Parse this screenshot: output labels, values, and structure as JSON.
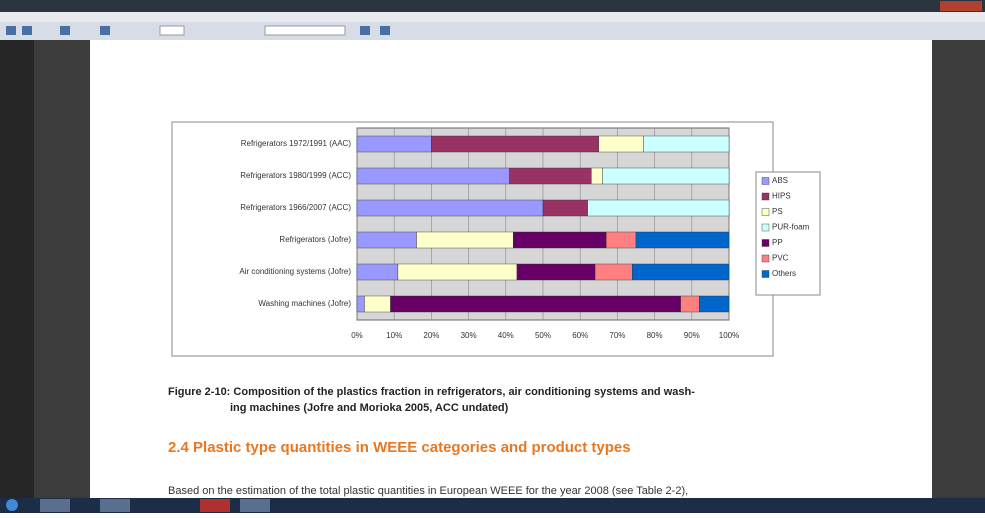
{
  "chart_data": {
    "type": "stacked-bar-horizontal",
    "categories": [
      "Refrigerators 1972/1991 (AAC)",
      "Refrigerators 1980/1999 (ACC)",
      "Refrigerators 1966/2007 (ACC)",
      "Refrigerators (Jofre)",
      "Air conditioning systems (Jofre)",
      "Washing machines (Jofre)"
    ],
    "series": [
      {
        "name": "ABS",
        "color": "#9999ff",
        "values": [
          20,
          41,
          50,
          16,
          11,
          2
        ]
      },
      {
        "name": "HIPS",
        "color": "#993366",
        "values": [
          45,
          22,
          12,
          0,
          0,
          0
        ]
      },
      {
        "name": "PS",
        "color": "#ffffcc",
        "values": [
          12,
          3,
          0,
          26,
          32,
          7
        ]
      },
      {
        "name": "PUR-foam",
        "color": "#ccffff",
        "values": [
          23,
          34,
          38,
          0,
          0,
          0
        ]
      },
      {
        "name": "PP",
        "color": "#660066",
        "values": [
          0,
          0,
          0,
          25,
          21,
          78
        ]
      },
      {
        "name": "PVC",
        "color": "#ff8080",
        "values": [
          0,
          0,
          0,
          8,
          10,
          5
        ]
      },
      {
        "name": "Others",
        "color": "#0066cc",
        "values": [
          0,
          0,
          0,
          25,
          26,
          8
        ]
      }
    ],
    "xlim": [
      0,
      100
    ],
    "xticks": [
      {
        "value": 0,
        "label": "0%"
      },
      {
        "value": 10,
        "label": "10%"
      },
      {
        "value": 20,
        "label": "20%"
      },
      {
        "value": 30,
        "label": "30%"
      },
      {
        "value": 40,
        "label": "40%"
      },
      {
        "value": 50,
        "label": "50%"
      },
      {
        "value": 60,
        "label": "60%"
      },
      {
        "value": 70,
        "label": "70%"
      },
      {
        "value": 80,
        "label": "80%"
      },
      {
        "value": 90,
        "label": "90%"
      },
      {
        "value": 100,
        "label": "100%"
      }
    ],
    "grid": true,
    "legend": "right"
  },
  "document": {
    "caption": [
      "Figure 2-10: Composition of the plastics fraction in refrigerators, air conditioning systems and wash-",
      "ing machines (Jofre and Morioka 2005, ACC undated)"
    ],
    "heading": "2.4   Plastic type quantities in WEEE categories and product types",
    "paragraph": "Based on the estimation of the total plastic quantities in European WEEE for the year 2008 (see Table 2-2),"
  }
}
